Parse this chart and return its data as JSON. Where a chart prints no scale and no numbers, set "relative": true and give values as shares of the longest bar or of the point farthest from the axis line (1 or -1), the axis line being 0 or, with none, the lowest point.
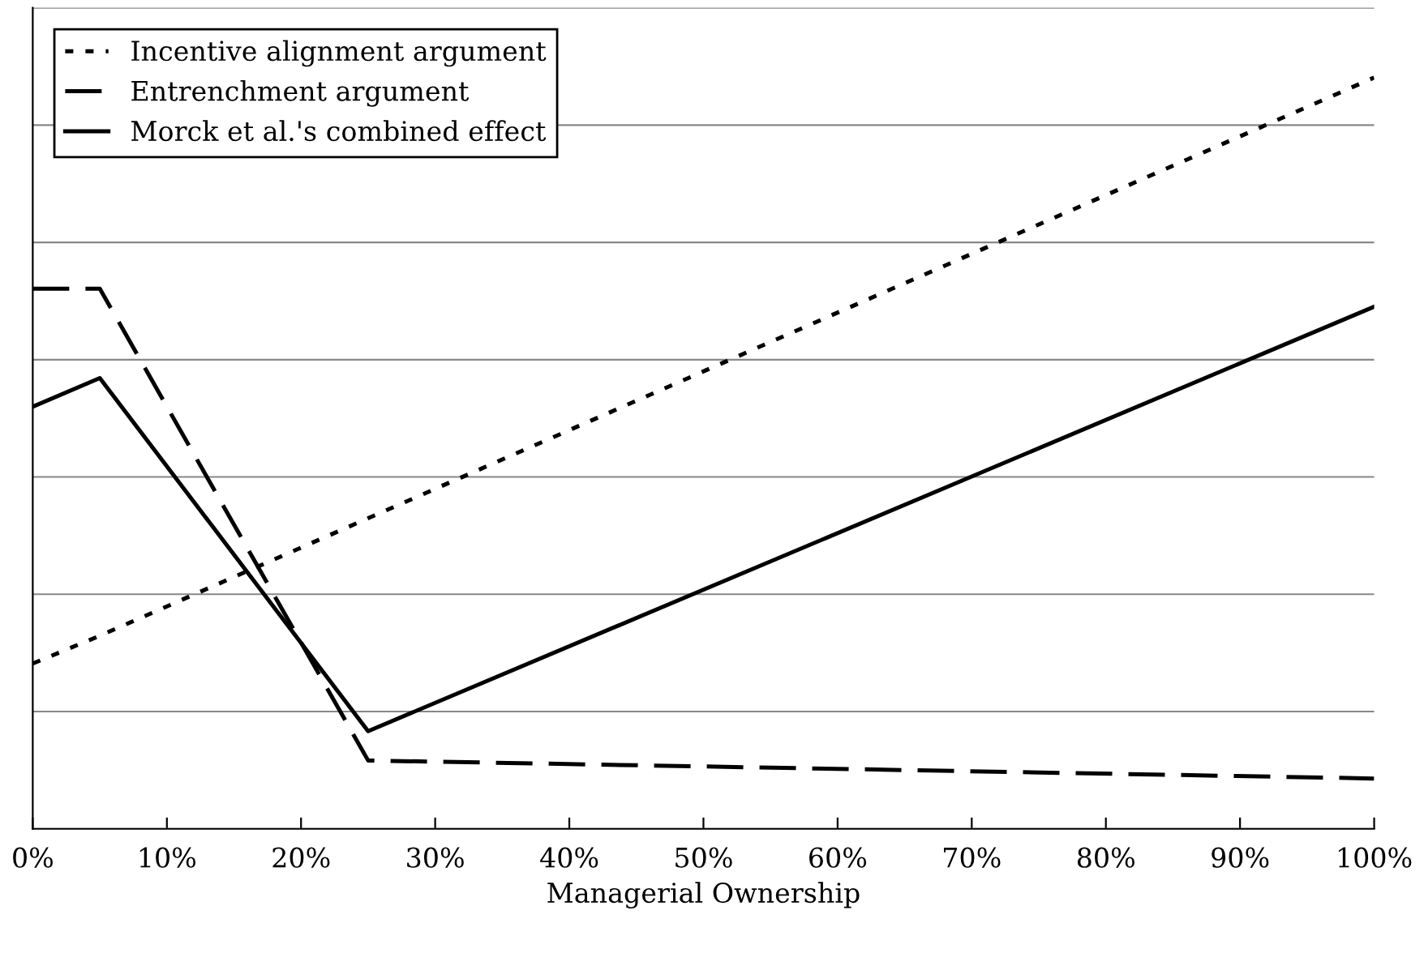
{
  "chart_data": {
    "type": "line",
    "relative": true,
    "xlabel": "Managerial Ownership",
    "xlim": [
      0,
      100
    ],
    "xticks": [
      {
        "value": 0,
        "label": "0%"
      },
      {
        "value": 10,
        "label": "10%"
      },
      {
        "value": 20,
        "label": "20%"
      },
      {
        "value": 30,
        "label": "30%"
      },
      {
        "value": 40,
        "label": "40%"
      },
      {
        "value": 50,
        "label": "50%"
      },
      {
        "value": 60,
        "label": "60%"
      },
      {
        "value": 70,
        "label": "70%"
      },
      {
        "value": 80,
        "label": "80%"
      },
      {
        "value": 90,
        "label": "90%"
      },
      {
        "value": 100,
        "label": "100%"
      }
    ],
    "series": [
      {
        "name": "Incentive alignment argument",
        "color": "#000000",
        "line_style": "dotted",
        "x": [
          0,
          5,
          100
        ],
        "values": [
          0.22,
          0.257,
          1
        ]
      },
      {
        "name": "Entrenchment argument",
        "color": "#000000",
        "line_style": "dashed",
        "x": [
          0,
          5,
          25,
          100
        ],
        "values": [
          0.719,
          0.719,
          0.091,
          0.067
        ]
      },
      {
        "name": "Morck et al.'s combined effect",
        "color": "#000000",
        "line_style": "solid",
        "x": [
          0,
          5,
          25,
          100
        ],
        "values": [
          0.562,
          0.6,
          0.13,
          0.695
        ]
      }
    ],
    "grid": "y",
    "legend": "top left",
    "tick_labels": "x",
    "marker": "none"
  }
}
